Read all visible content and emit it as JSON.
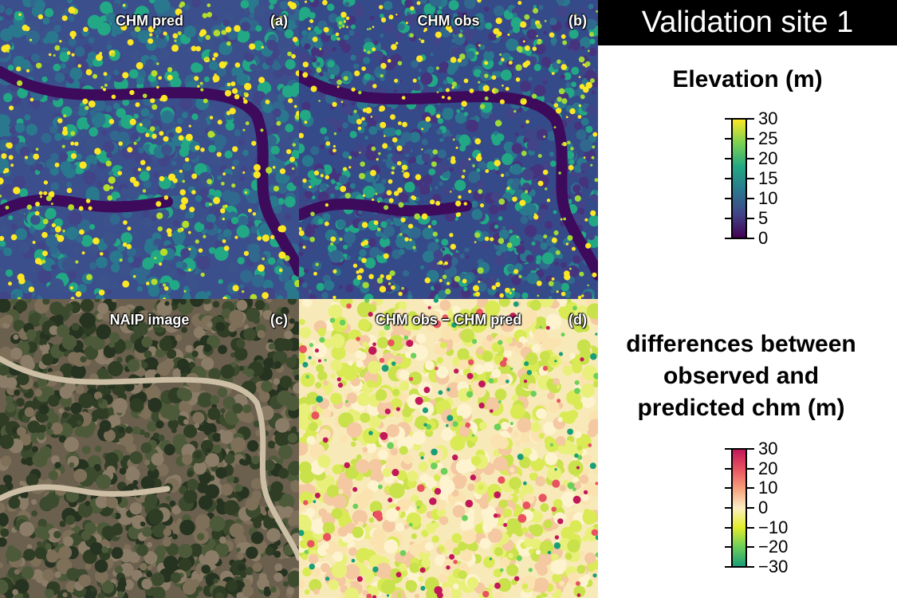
{
  "site_title": "Validation site  1",
  "panels": [
    {
      "id": "a",
      "title": "CHM pred",
      "tag": "(a)"
    },
    {
      "id": "b",
      "title": "CHM obs",
      "tag": "(b)"
    },
    {
      "id": "c",
      "title": "NAIP image",
      "tag": "(c)"
    },
    {
      "id": "d",
      "title": "CHM obs − CHM pred",
      "tag": "(d)"
    }
  ],
  "legend_elevation": {
    "title": "Elevation (m)",
    "ticks": [
      "30",
      "25",
      "20",
      "15",
      "10",
      "5",
      "0"
    ],
    "colors": [
      "#fde725",
      "#7ad151",
      "#22a884",
      "#2a788e",
      "#414487",
      "#440154"
    ]
  },
  "legend_diff": {
    "title_lines": [
      "differences between",
      "observed and",
      "predicted chm (m)"
    ],
    "ticks": [
      "30",
      "20",
      "10",
      "0",
      "−10",
      "−20",
      "−30"
    ],
    "colors": [
      "#c2185b",
      "#e8535f",
      "#f6a07d",
      "#fdeec3",
      "#e3ed2b",
      "#6ccf5a",
      "#1a9e78"
    ]
  }
}
